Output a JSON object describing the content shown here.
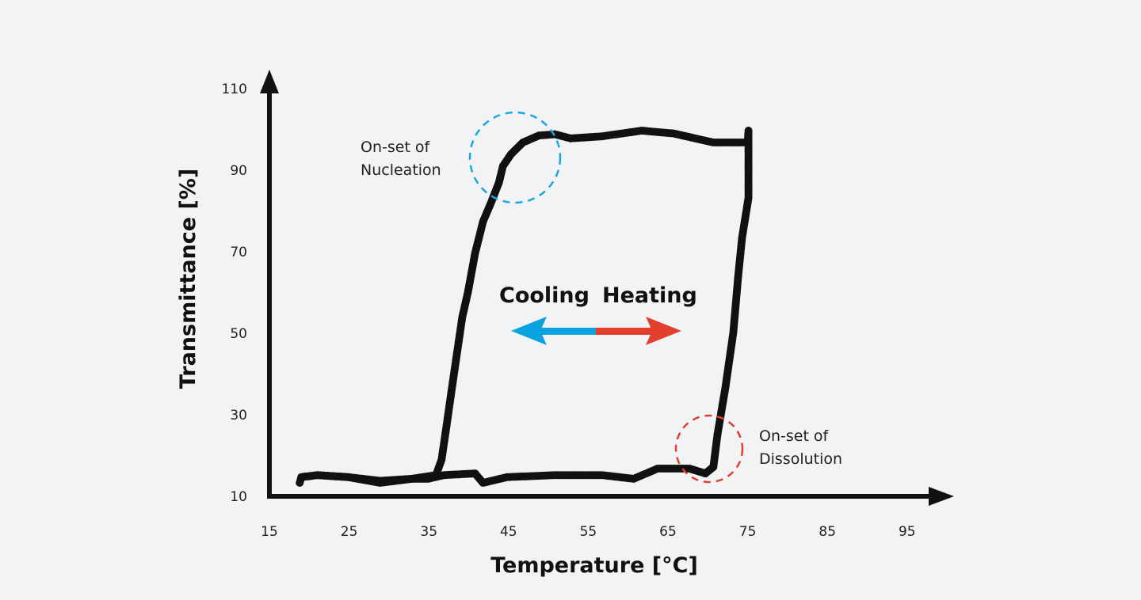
{
  "chart_data": {
    "type": "scatter",
    "title": "",
    "xlabel": "Temperature [°C]",
    "ylabel": "Transmittance [%]",
    "xlim": [
      15,
      100
    ],
    "ylim": [
      10,
      115
    ],
    "x_ticks": [
      15,
      25,
      35,
      45,
      55,
      65,
      75,
      85,
      95
    ],
    "y_ticks": [
      10,
      30,
      50,
      70,
      90,
      110
    ],
    "grid": false,
    "marker_color": "#111111",
    "series": [
      {
        "direction": "heating",
        "points": [
          [
            18.8,
            13.3
          ],
          [
            19,
            14.7
          ],
          [
            21,
            15.2
          ],
          [
            24.9,
            14.7
          ],
          [
            28.9,
            13.8
          ],
          [
            32.9,
            14.3
          ],
          [
            34.9,
            14.3
          ],
          [
            36.9,
            15.2
          ],
          [
            40.8,
            15.6
          ],
          [
            41.8,
            13.3
          ],
          [
            44.8,
            14.7
          ],
          [
            50.8,
            15.2
          ],
          [
            56.7,
            15.2
          ],
          [
            60.7,
            14.3
          ],
          [
            63.7,
            16.8
          ],
          [
            67.7,
            16.8
          ],
          [
            69.7,
            15.6
          ],
          [
            70.7,
            17.2
          ],
          [
            71.2,
            25
          ],
          [
            72.2,
            36.6
          ],
          [
            73.2,
            50.2
          ],
          [
            73.8,
            63.8
          ],
          [
            74.3,
            73.5
          ],
          [
            75.1,
            83.2
          ],
          [
            75.1,
            92.9
          ],
          [
            75.1,
            99.7
          ],
          [
            75.0,
            96.8
          ]
        ]
      },
      {
        "direction": "cooling",
        "points": [
          [
            75.0,
            96.8
          ],
          [
            70.7,
            96.8
          ],
          [
            65.7,
            99.0
          ],
          [
            61.7,
            99.7
          ],
          [
            56.7,
            98.3
          ],
          [
            52.8,
            97.8
          ],
          [
            50.8,
            98.8
          ],
          [
            48.8,
            98.5
          ],
          [
            46.8,
            96.8
          ],
          [
            45.3,
            93.9
          ],
          [
            44.3,
            91
          ],
          [
            43.8,
            87
          ],
          [
            42.8,
            82
          ],
          [
            41.8,
            77.4
          ],
          [
            40.8,
            69.6
          ],
          [
            39.9,
            60
          ],
          [
            39.2,
            54
          ],
          [
            38.6,
            46
          ],
          [
            37.9,
            36.6
          ],
          [
            37.2,
            27
          ],
          [
            36.6,
            19
          ],
          [
            35.9,
            15.2
          ],
          [
            32.9,
            14.3
          ],
          [
            28.9,
            13.3
          ],
          [
            24.9,
            14.7
          ],
          [
            21,
            15.2
          ],
          [
            19,
            14.7
          ]
        ]
      }
    ],
    "annotations": {
      "nucleation": {
        "line1": "On-set of",
        "line2": "Nucleation",
        "circle_color": "#1aa7e0"
      },
      "dissolution": {
        "line1": "On-set of",
        "line2": "Dissolution",
        "circle_color": "#e04030"
      }
    },
    "legend": {
      "cooling": "Cooling",
      "heating": "Heating",
      "cooling_color": "#0aa3e0",
      "heating_color": "#e2402c"
    }
  }
}
